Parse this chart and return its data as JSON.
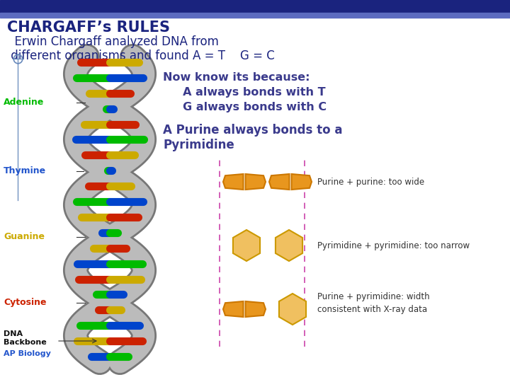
{
  "bg_color": "#ffffff",
  "header_bar_color": "#1a237e",
  "header_bar2_color": "#5c6bc0",
  "title_line1": "CHARGAFF’s RULES",
  "title_line2": "  Erwin Chargaff analyzed DNA from",
  "title_line3": " different organisms and found A = T    G = C",
  "title_color": "#1a237e",
  "body_text1": "Now know its because:",
  "body_text2": "     A always bonds with T",
  "body_text3": "     G always bonds with C",
  "body_text_color": "#3a3a8c",
  "purine_text1": "A Purine always bonds to a",
  "purine_text2": "Pyrimidine",
  "purine_color": "#3a3a8c",
  "label_adenine": "Adenine",
  "label_thymine": "Thymine",
  "label_guanine": "Guanine",
  "label_cytosine": "Cytosine",
  "label_dna": "DNA\nBackbone",
  "label_ap": "AP Biology",
  "adenine_color": "#00bb00",
  "thymine_color": "#2255cc",
  "guanine_color": "#ccaa00",
  "cytosine_color": "#cc2200",
  "purine_shape_color": "#e8961e",
  "purine_shape_edge": "#cc7700",
  "pyrimidine_shape_color": "#f0c060",
  "pyrimidine_shape_edge": "#cc9900",
  "dashed_line_color": "#cc44aa",
  "desc_color": "#333333",
  "crosshair_color": "#6688bb"
}
